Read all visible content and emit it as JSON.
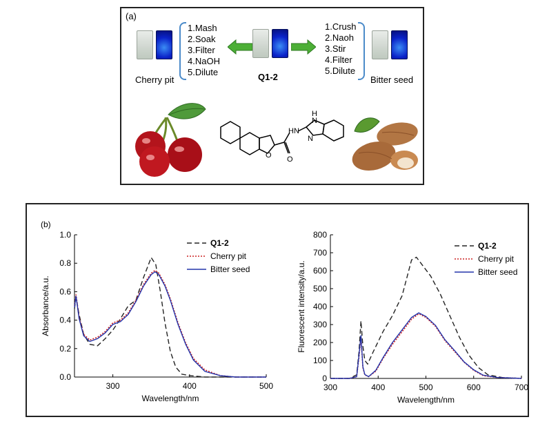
{
  "panel_a": {
    "label": "(a)",
    "center_compound": "Q1-2",
    "left_source": "Cherry pit",
    "right_source": "Bitter seed",
    "left_steps": [
      "1.Mash",
      "2.Soak",
      "3.Filter",
      "4.NaOH",
      "5.Dilute"
    ],
    "right_steps": [
      "1.Crush",
      "2.Naoh",
      "3.Stir",
      "4.Filter",
      "5.Dilute"
    ],
    "structure_labels": {
      "nh_amide": "HN",
      "h": "H",
      "n_upper": "N",
      "n_lower": "N",
      "o_furan": "O",
      "o_carbonyl": "O"
    }
  },
  "panel_b": {
    "label": "(b)"
  },
  "colors": {
    "q12": "#222222",
    "cherry": "#cc2222",
    "bitter": "#2233aa",
    "arrow": "#4caf36",
    "brace": "#4a8ac9"
  },
  "chart_data": [
    {
      "type": "line",
      "xlabel": "Wavelength/nm",
      "ylabel": "Absorbance/a.u.",
      "xlim": [
        250,
        500
      ],
      "ylim": [
        0,
        1.0
      ],
      "xticks": [
        300,
        400,
        500
      ],
      "yticks": [
        0.0,
        0.2,
        0.4,
        0.6,
        0.8,
        1.0
      ],
      "ytick_labels": [
        "0.0",
        "0.2",
        "0.4",
        "0.6",
        "0.8",
        "1.0"
      ],
      "legend_position": "top-right",
      "series": [
        {
          "name": "Q1-2",
          "style": "dashed",
          "color": "#222222",
          "x": [
            250,
            252,
            256,
            262,
            270,
            280,
            290,
            300,
            310,
            320,
            330,
            340,
            350,
            356,
            362,
            368,
            375,
            382,
            390,
            400,
            420,
            450,
            500
          ],
          "y": [
            0.48,
            0.56,
            0.44,
            0.3,
            0.23,
            0.22,
            0.27,
            0.33,
            0.41,
            0.5,
            0.54,
            0.7,
            0.84,
            0.79,
            0.6,
            0.38,
            0.18,
            0.07,
            0.02,
            0.01,
            0.0,
            0.0,
            0.0
          ]
        },
        {
          "name": "Cherry pit",
          "style": "dotted",
          "color": "#cc2222",
          "x": [
            250,
            252,
            256,
            262,
            270,
            280,
            290,
            300,
            310,
            320,
            330,
            340,
            350,
            355,
            360,
            368,
            375,
            385,
            395,
            405,
            420,
            440,
            460,
            500
          ],
          "y": [
            0.5,
            0.58,
            0.42,
            0.3,
            0.26,
            0.28,
            0.32,
            0.38,
            0.4,
            0.45,
            0.54,
            0.65,
            0.73,
            0.75,
            0.73,
            0.65,
            0.55,
            0.38,
            0.24,
            0.13,
            0.05,
            0.01,
            0.0,
            0.0
          ]
        },
        {
          "name": "Bitter seed",
          "style": "solid",
          "color": "#2233aa",
          "x": [
            250,
            252,
            256,
            262,
            270,
            280,
            290,
            300,
            310,
            320,
            330,
            340,
            350,
            355,
            360,
            368,
            375,
            385,
            395,
            405,
            420,
            440,
            460,
            500
          ],
          "y": [
            0.49,
            0.57,
            0.41,
            0.29,
            0.25,
            0.27,
            0.31,
            0.37,
            0.39,
            0.44,
            0.53,
            0.64,
            0.72,
            0.74,
            0.72,
            0.64,
            0.54,
            0.37,
            0.23,
            0.12,
            0.04,
            0.01,
            0.0,
            0.0
          ]
        }
      ]
    },
    {
      "type": "line",
      "xlabel": "Wavelength/nm",
      "ylabel": "Fluorescent intensity/a.u.",
      "xlim": [
        300,
        700
      ],
      "ylim": [
        0,
        800
      ],
      "xticks": [
        300,
        400,
        500,
        600,
        700
      ],
      "yticks": [
        0,
        100,
        200,
        300,
        400,
        500,
        600,
        700,
        800
      ],
      "legend_position": "top-right",
      "series": [
        {
          "name": "Q1-2",
          "style": "dashed",
          "color": "#222222",
          "x": [
            300,
            340,
            355,
            360,
            364,
            368,
            372,
            378,
            390,
            410,
            430,
            450,
            470,
            480,
            490,
            510,
            530,
            550,
            570,
            590,
            610,
            630,
            660,
            700
          ],
          "y": [
            0,
            0,
            20,
            150,
            320,
            180,
            100,
            80,
            150,
            260,
            350,
            460,
            660,
            675,
            640,
            570,
            470,
            350,
            230,
            130,
            60,
            20,
            5,
            0
          ]
        },
        {
          "name": "Cherry pit",
          "style": "dotted",
          "color": "#cc2222",
          "x": [
            300,
            340,
            355,
            360,
            364,
            368,
            372,
            380,
            395,
            410,
            430,
            450,
            470,
            485,
            500,
            520,
            540,
            560,
            580,
            600,
            620,
            650,
            700
          ],
          "y": [
            0,
            0,
            10,
            120,
            230,
            60,
            20,
            10,
            40,
            110,
            190,
            260,
            330,
            360,
            340,
            290,
            210,
            150,
            90,
            45,
            15,
            5,
            0
          ]
        },
        {
          "name": "Bitter seed",
          "style": "solid",
          "color": "#2233aa",
          "x": [
            300,
            340,
            355,
            360,
            364,
            368,
            372,
            380,
            395,
            410,
            430,
            450,
            470,
            485,
            500,
            520,
            540,
            560,
            580,
            600,
            620,
            650,
            700
          ],
          "y": [
            0,
            0,
            10,
            130,
            240,
            65,
            22,
            10,
            45,
            115,
            200,
            270,
            340,
            365,
            345,
            295,
            215,
            155,
            92,
            48,
            18,
            5,
            0
          ]
        }
      ]
    }
  ]
}
